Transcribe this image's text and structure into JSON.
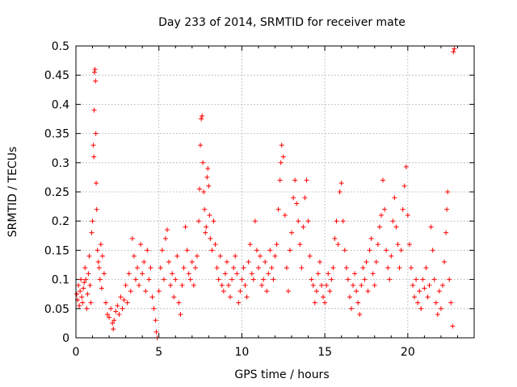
{
  "chart_data": {
    "type": "scatter",
    "title": "Day 233 of 2014, SRMTID for receiver mate",
    "xlabel": "GPS time / hours",
    "ylabel": "SRMTID / TECUs",
    "xlim": [
      0,
      24
    ],
    "ylim": [
      0,
      0.5
    ],
    "x_ticks": [
      0,
      5,
      10,
      15,
      20
    ],
    "x_tick_labels": [
      "0",
      "5",
      "10",
      "15",
      "20"
    ],
    "y_ticks": [
      0,
      0.05,
      0.1,
      0.15,
      0.2,
      0.25,
      0.3,
      0.35,
      0.4,
      0.45,
      0.5
    ],
    "y_tick_labels": [
      "0",
      "0.05",
      "0.1",
      "0.15",
      "0.2",
      "0.25",
      "0.3",
      "0.35",
      "0.4",
      "0.45",
      "0.5"
    ],
    "grid": true,
    "marker": "+",
    "color": "#ff0000",
    "series": [
      {
        "name": "SRMTID",
        "points": [
          [
            0.05,
            0.075
          ],
          [
            0.1,
            0.065
          ],
          [
            0.15,
            0.09
          ],
          [
            0.2,
            0.055
          ],
          [
            0.25,
            0.08
          ],
          [
            0.3,
            0.1
          ],
          [
            0.35,
            0.07
          ],
          [
            0.4,
            0.06
          ],
          [
            0.45,
            0.085
          ],
          [
            0.5,
            0.095
          ],
          [
            0.55,
            0.12
          ],
          [
            0.6,
            0.1
          ],
          [
            0.65,
            0.05
          ],
          [
            0.7,
            0.075
          ],
          [
            0.75,
            0.11
          ],
          [
            0.8,
            0.14
          ],
          [
            0.85,
            0.09
          ],
          [
            0.9,
            0.06
          ],
          [
            0.95,
            0.18
          ],
          [
            1.0,
            0.2
          ],
          [
            1.05,
            0.33
          ],
          [
            1.08,
            0.31
          ],
          [
            1.1,
            0.39
          ],
          [
            1.12,
            0.455
          ],
          [
            1.15,
            0.46
          ],
          [
            1.18,
            0.44
          ],
          [
            1.2,
            0.35
          ],
          [
            1.22,
            0.265
          ],
          [
            1.25,
            0.22
          ],
          [
            1.3,
            0.15
          ],
          [
            1.35,
            0.13
          ],
          [
            1.4,
            0.12
          ],
          [
            1.45,
            0.1
          ],
          [
            1.5,
            0.16
          ],
          [
            1.55,
            0.085
          ],
          [
            1.6,
            0.14
          ],
          [
            1.7,
            0.11
          ],
          [
            1.8,
            0.06
          ],
          [
            1.9,
            0.04
          ],
          [
            2.0,
            0.035
          ],
          [
            2.1,
            0.05
          ],
          [
            2.2,
            0.025
          ],
          [
            2.25,
            0.015
          ],
          [
            2.3,
            0.03
          ],
          [
            2.4,
            0.045
          ],
          [
            2.5,
            0.055
          ],
          [
            2.6,
            0.04
          ],
          [
            2.7,
            0.07
          ],
          [
            2.8,
            0.05
          ],
          [
            2.9,
            0.065
          ],
          [
            3.0,
            0.09
          ],
          [
            3.1,
            0.06
          ],
          [
            3.2,
            0.11
          ],
          [
            3.3,
            0.08
          ],
          [
            3.4,
            0.17
          ],
          [
            3.5,
            0.14
          ],
          [
            3.6,
            0.1
          ],
          [
            3.7,
            0.12
          ],
          [
            3.8,
            0.09
          ],
          [
            3.9,
            0.16
          ],
          [
            4.0,
            0.11
          ],
          [
            4.1,
            0.13
          ],
          [
            4.2,
            0.08
          ],
          [
            4.3,
            0.15
          ],
          [
            4.4,
            0.1
          ],
          [
            4.5,
            0.12
          ],
          [
            4.6,
            0.07
          ],
          [
            4.7,
            0.05
          ],
          [
            4.8,
            0.03
          ],
          [
            4.85,
            0.01
          ],
          [
            4.9,
            0.0
          ],
          [
            5.0,
            0.08
          ],
          [
            5.1,
            0.12
          ],
          [
            5.2,
            0.15
          ],
          [
            5.3,
            0.1
          ],
          [
            5.4,
            0.17
          ],
          [
            5.5,
            0.185
          ],
          [
            5.6,
            0.13
          ],
          [
            5.7,
            0.09
          ],
          [
            5.8,
            0.11
          ],
          [
            5.9,
            0.07
          ],
          [
            6.0,
            0.1
          ],
          [
            6.1,
            0.14
          ],
          [
            6.2,
            0.06
          ],
          [
            6.3,
            0.04
          ],
          [
            6.4,
            0.09
          ],
          [
            6.5,
            0.12
          ],
          [
            6.6,
            0.19
          ],
          [
            6.7,
            0.15
          ],
          [
            6.8,
            0.11
          ],
          [
            6.9,
            0.1
          ],
          [
            7.0,
            0.13
          ],
          [
            7.1,
            0.09
          ],
          [
            7.2,
            0.12
          ],
          [
            7.3,
            0.14
          ],
          [
            7.4,
            0.2
          ],
          [
            7.45,
            0.255
          ],
          [
            7.5,
            0.33
          ],
          [
            7.55,
            0.375
          ],
          [
            7.6,
            0.38
          ],
          [
            7.65,
            0.3
          ],
          [
            7.7,
            0.25
          ],
          [
            7.75,
            0.22
          ],
          [
            7.8,
            0.18
          ],
          [
            7.85,
            0.19
          ],
          [
            7.9,
            0.275
          ],
          [
            7.95,
            0.29
          ],
          [
            8.0,
            0.26
          ],
          [
            8.05,
            0.21
          ],
          [
            8.1,
            0.17
          ],
          [
            8.2,
            0.15
          ],
          [
            8.3,
            0.2
          ],
          [
            8.4,
            0.16
          ],
          [
            8.5,
            0.12
          ],
          [
            8.6,
            0.1
          ],
          [
            8.7,
            0.14
          ],
          [
            8.8,
            0.09
          ],
          [
            8.9,
            0.08
          ],
          [
            9.0,
            0.11
          ],
          [
            9.1,
            0.13
          ],
          [
            9.2,
            0.09
          ],
          [
            9.3,
            0.07
          ],
          [
            9.4,
            0.1
          ],
          [
            9.5,
            0.12
          ],
          [
            9.6,
            0.14
          ],
          [
            9.7,
            0.11
          ],
          [
            9.8,
            0.06
          ],
          [
            9.9,
            0.08
          ],
          [
            10.0,
            0.1
          ],
          [
            10.1,
            0.12
          ],
          [
            10.2,
            0.09
          ],
          [
            10.3,
            0.07
          ],
          [
            10.4,
            0.13
          ],
          [
            10.5,
            0.16
          ],
          [
            10.6,
            0.11
          ],
          [
            10.7,
            0.1
          ],
          [
            10.8,
            0.2
          ],
          [
            10.9,
            0.15
          ],
          [
            11.0,
            0.12
          ],
          [
            11.1,
            0.14
          ],
          [
            11.2,
            0.09
          ],
          [
            11.3,
            0.1
          ],
          [
            11.4,
            0.13
          ],
          [
            11.5,
            0.08
          ],
          [
            11.6,
            0.11
          ],
          [
            11.7,
            0.15
          ],
          [
            11.8,
            0.12
          ],
          [
            11.9,
            0.1
          ],
          [
            12.0,
            0.14
          ],
          [
            12.1,
            0.16
          ],
          [
            12.2,
            0.22
          ],
          [
            12.3,
            0.27
          ],
          [
            12.35,
            0.3
          ],
          [
            12.4,
            0.33
          ],
          [
            12.5,
            0.31
          ],
          [
            12.6,
            0.21
          ],
          [
            12.7,
            0.12
          ],
          [
            12.8,
            0.08
          ],
          [
            12.9,
            0.15
          ],
          [
            13.0,
            0.18
          ],
          [
            13.1,
            0.24
          ],
          [
            13.2,
            0.27
          ],
          [
            13.3,
            0.23
          ],
          [
            13.4,
            0.2
          ],
          [
            13.5,
            0.16
          ],
          [
            13.6,
            0.12
          ],
          [
            13.7,
            0.19
          ],
          [
            13.8,
            0.24
          ],
          [
            13.9,
            0.27
          ],
          [
            14.0,
            0.2
          ],
          [
            14.1,
            0.14
          ],
          [
            14.2,
            0.1
          ],
          [
            14.3,
            0.09
          ],
          [
            14.4,
            0.06
          ],
          [
            14.5,
            0.08
          ],
          [
            14.6,
            0.11
          ],
          [
            14.7,
            0.13
          ],
          [
            14.8,
            0.09
          ],
          [
            14.9,
            0.07
          ],
          [
            15.0,
            0.06
          ],
          [
            15.1,
            0.09
          ],
          [
            15.2,
            0.11
          ],
          [
            15.3,
            0.08
          ],
          [
            15.4,
            0.1
          ],
          [
            15.5,
            0.12
          ],
          [
            15.6,
            0.17
          ],
          [
            15.7,
            0.2
          ],
          [
            15.8,
            0.16
          ],
          [
            15.9,
            0.25
          ],
          [
            16.0,
            0.265
          ],
          [
            16.1,
            0.2
          ],
          [
            16.2,
            0.15
          ],
          [
            16.3,
            0.12
          ],
          [
            16.4,
            0.1
          ],
          [
            16.5,
            0.07
          ],
          [
            16.6,
            0.05
          ],
          [
            16.7,
            0.09
          ],
          [
            16.8,
            0.11
          ],
          [
            16.9,
            0.08
          ],
          [
            17.0,
            0.06
          ],
          [
            17.1,
            0.04
          ],
          [
            17.2,
            0.09
          ],
          [
            17.3,
            0.12
          ],
          [
            17.4,
            0.1
          ],
          [
            17.5,
            0.13
          ],
          [
            17.6,
            0.08
          ],
          [
            17.7,
            0.15
          ],
          [
            17.8,
            0.17
          ],
          [
            17.9,
            0.11
          ],
          [
            18.0,
            0.09
          ],
          [
            18.1,
            0.13
          ],
          [
            18.2,
            0.16
          ],
          [
            18.3,
            0.19
          ],
          [
            18.4,
            0.21
          ],
          [
            18.5,
            0.27
          ],
          [
            18.6,
            0.22
          ],
          [
            18.7,
            0.15
          ],
          [
            18.8,
            0.12
          ],
          [
            18.9,
            0.1
          ],
          [
            19.0,
            0.14
          ],
          [
            19.1,
            0.2
          ],
          [
            19.2,
            0.24
          ],
          [
            19.3,
            0.19
          ],
          [
            19.4,
            0.16
          ],
          [
            19.5,
            0.12
          ],
          [
            19.6,
            0.15
          ],
          [
            19.7,
            0.22
          ],
          [
            19.8,
            0.26
          ],
          [
            19.9,
            0.293
          ],
          [
            20.0,
            0.21
          ],
          [
            20.1,
            0.16
          ],
          [
            20.2,
            0.12
          ],
          [
            20.3,
            0.09
          ],
          [
            20.4,
            0.07
          ],
          [
            20.5,
            0.1
          ],
          [
            20.6,
            0.06
          ],
          [
            20.7,
            0.08
          ],
          [
            20.8,
            0.05
          ],
          [
            20.9,
            0.1
          ],
          [
            21.0,
            0.085
          ],
          [
            21.1,
            0.12
          ],
          [
            21.2,
            0.07
          ],
          [
            21.3,
            0.09
          ],
          [
            21.4,
            0.19
          ],
          [
            21.5,
            0.15
          ],
          [
            21.6,
            0.1
          ],
          [
            21.7,
            0.06
          ],
          [
            21.8,
            0.04
          ],
          [
            21.9,
            0.08
          ],
          [
            22.0,
            0.05
          ],
          [
            22.1,
            0.09
          ],
          [
            22.2,
            0.13
          ],
          [
            22.3,
            0.18
          ],
          [
            22.35,
            0.22
          ],
          [
            22.4,
            0.25
          ],
          [
            22.5,
            0.1
          ],
          [
            22.6,
            0.06
          ],
          [
            22.7,
            0.02
          ],
          [
            22.75,
            0.49
          ],
          [
            22.8,
            0.495
          ]
        ]
      }
    ]
  }
}
